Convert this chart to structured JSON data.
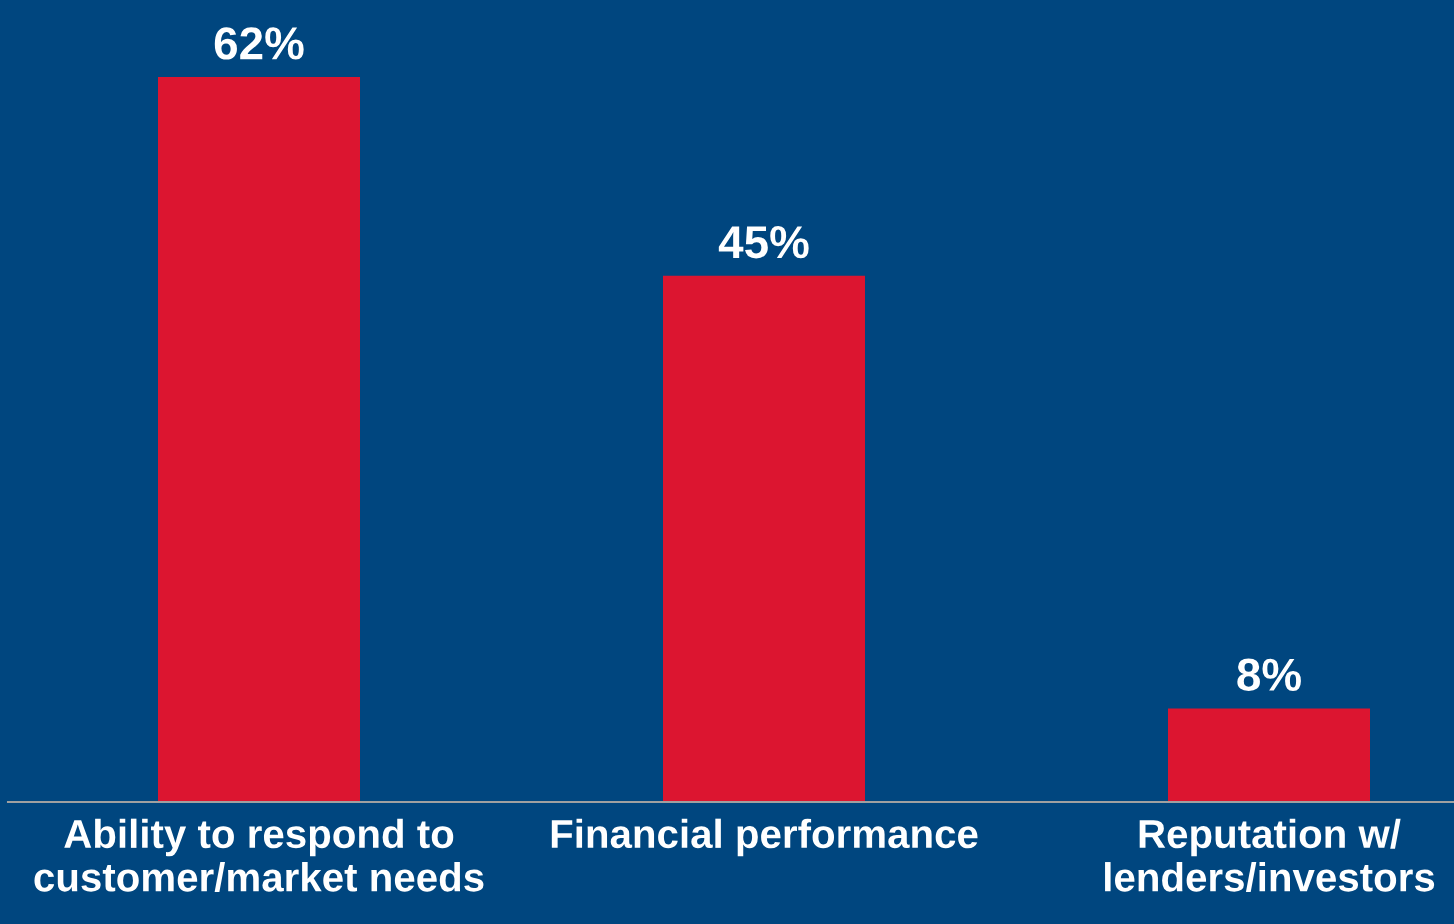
{
  "chart_data": {
    "type": "bar",
    "categories": [
      "Ability to respond to customer/market needs",
      "Financial performance",
      "Reputation w/ lenders/investors"
    ],
    "values": [
      62,
      45,
      8
    ],
    "value_labels": [
      "62%",
      "45%",
      "8%"
    ],
    "color": "#dc1530",
    "tick_labels": "x",
    "grid": false
  }
}
